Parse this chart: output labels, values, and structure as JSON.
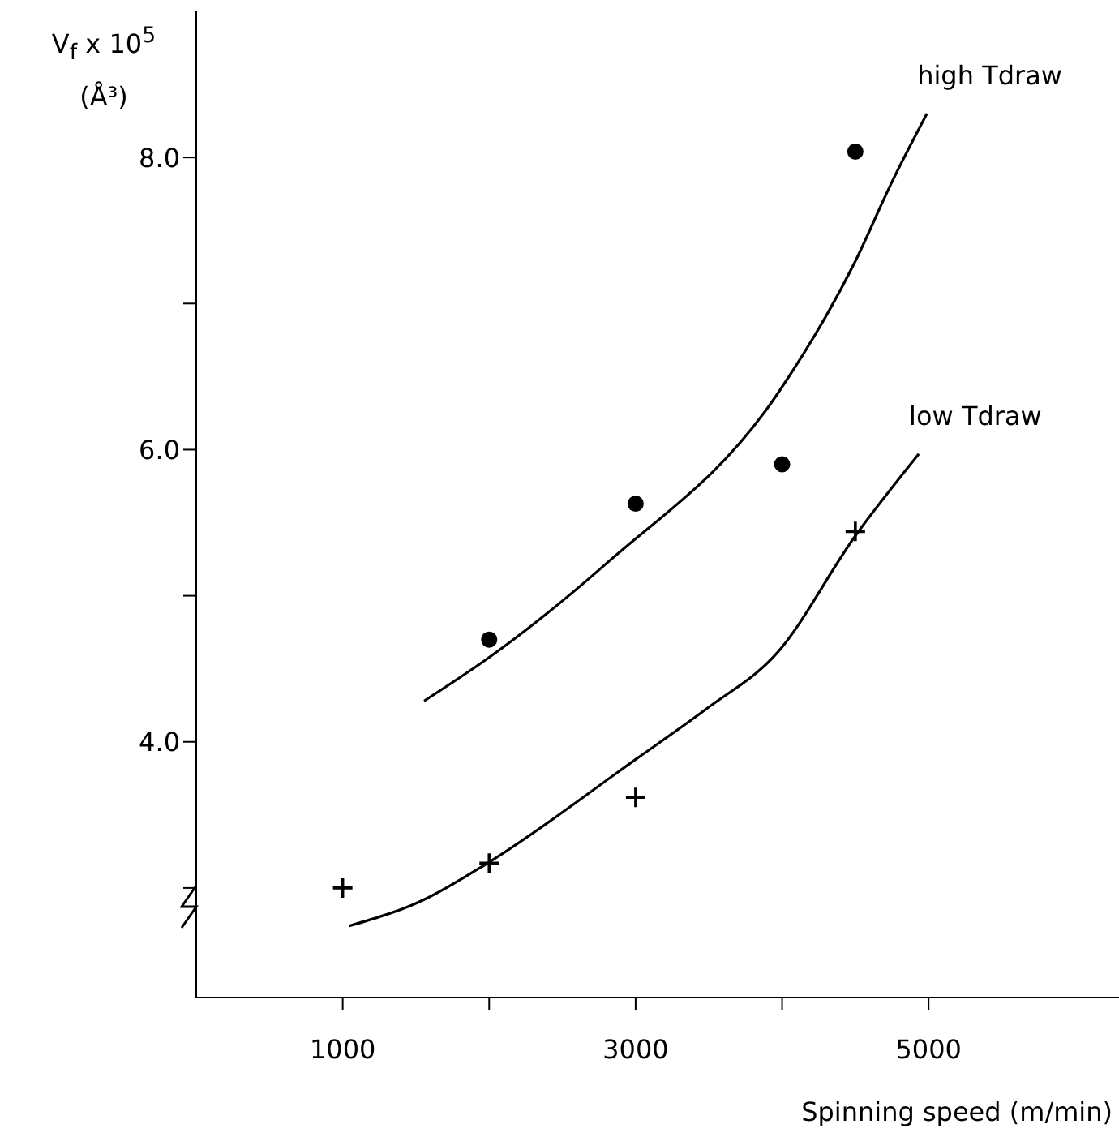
{
  "chart_data": {
    "type": "scatter",
    "xlabel": "Spinning speed (m/min)",
    "ylabel": "V$_{f}$ x 10$^{5}$ (Å³)",
    "xlim": [
      0,
      6300
    ],
    "ylim": [
      2.25,
      9
    ],
    "xticks": [
      1000,
      {
        "value": 2000,
        "label": null
      },
      3000,
      {
        "value": 4000,
        "label": null
      },
      5000
    ],
    "yticks": [
      {
        "value": 3,
        "label": null
      },
      {
        "value": 4,
        "label": "4.0"
      },
      {
        "value": 5,
        "label": null
      },
      {
        "value": 6,
        "label": "6.0"
      },
      {
        "value": 7,
        "label": null
      },
      {
        "value": 8,
        "label": "8.0"
      }
    ],
    "series": [
      {
        "marker": "circle",
        "color": "#000000",
        "x": [
          2000,
          3000,
          4000,
          4500
        ],
        "values": [
          4.7,
          5.63,
          5.9,
          8.04
        ]
      },
      {
        "type": "scatter",
        "marker": "cross",
        "color": "#000000",
        "x": [
          1000,
          2000,
          3000,
          4500
        ],
        "values": [
          3.0,
          3.17,
          3.62,
          5.44
        ]
      },
      {
        "type": "line",
        "name": "high Tdraw",
        "color": "#000000",
        "line_style": "solid",
        "marker": "none",
        "x": [
          1556,
          1989,
          2811,
          3967,
          4500,
          4744,
          4989
        ],
        "values": [
          4.28,
          4.57,
          5.23,
          6.38,
          7.29,
          7.82,
          8.3
        ]
      },
      {
        "type": "line",
        "name": "low Tdraw",
        "color": "#000000",
        "line_style": "solid",
        "marker": "none",
        "x": [
          1044,
          1556,
          1989,
          3000,
          3489,
          3967,
          4500,
          4933
        ],
        "values": [
          2.74,
          2.92,
          3.17,
          3.88,
          4.23,
          4.61,
          5.41,
          5.97
        ]
      }
    ]
  }
}
